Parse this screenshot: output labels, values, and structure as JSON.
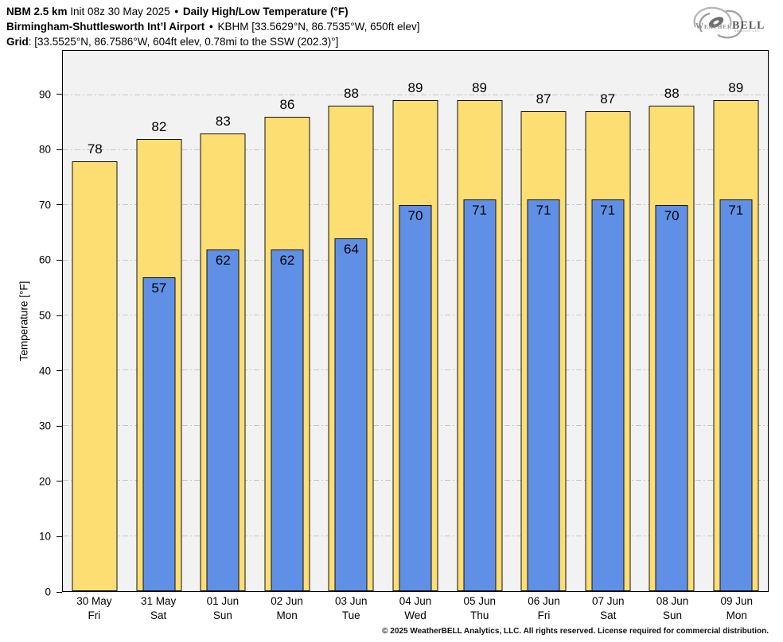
{
  "header": {
    "line1": {
      "model": "NBM 2.5 km",
      "init": "Init 08z 30 May 2025",
      "sep": "•",
      "product": "Daily High/Low Temperature (°F)"
    },
    "line2": {
      "station": "Birmingham-Shuttlesworth Int’l Airport",
      "sep": "•",
      "details": "KBHM [33.5629°N, 86.7535°W, 650ft elev]"
    },
    "line3": {
      "label": "Grid",
      "details": ": [33.5525°N, 86.7586°W, 604ft elev, 0.78mi to the SSW (202.3)°]"
    }
  },
  "logo": {
    "weather": "Weather",
    "bell": "BELL",
    "sub": "Analytics LLC"
  },
  "chart_data": {
    "type": "bar",
    "title": "NBM 2.5 km Daily High/Low Temperature (°F) — Birmingham-Shuttlesworth Int’l Airport (KBHM)",
    "ylabel": "Temperature [°F]",
    "xlabel": "",
    "ylim": [
      0,
      98
    ],
    "yticks": [
      0,
      10,
      20,
      30,
      40,
      50,
      60,
      70,
      80,
      90
    ],
    "grid": "horizontal dash-dot, light gray, behind bars",
    "legend_position": "none",
    "plot_bg": "#f2f2f2",
    "categories": [
      {
        "date": "30 May",
        "day": "Fri"
      },
      {
        "date": "31 May",
        "day": "Sat"
      },
      {
        "date": "01 Jun",
        "day": "Sun"
      },
      {
        "date": "02 Jun",
        "day": "Mon"
      },
      {
        "date": "03 Jun",
        "day": "Tue"
      },
      {
        "date": "04 Jun",
        "day": "Wed"
      },
      {
        "date": "05 Jun",
        "day": "Thu"
      },
      {
        "date": "06 Jun",
        "day": "Fri"
      },
      {
        "date": "07 Jun",
        "day": "Sat"
      },
      {
        "date": "08 Jun",
        "day": "Sun"
      },
      {
        "date": "09 Jun",
        "day": "Mon"
      }
    ],
    "series": [
      {
        "name": "Daily High",
        "color": "#fcde72",
        "values": [
          78,
          82,
          83,
          86,
          88,
          89,
          89,
          87,
          87,
          88,
          89
        ]
      },
      {
        "name": "Daily Low",
        "color": "#6090e6",
        "values": [
          null,
          57,
          62,
          62,
          64,
          70,
          71,
          71,
          71,
          70,
          71
        ]
      }
    ]
  },
  "footer": {
    "copyright": "© 2025 WeatherBELL Analytics, LLC. All rights reserved. License required for commercial distribution."
  }
}
